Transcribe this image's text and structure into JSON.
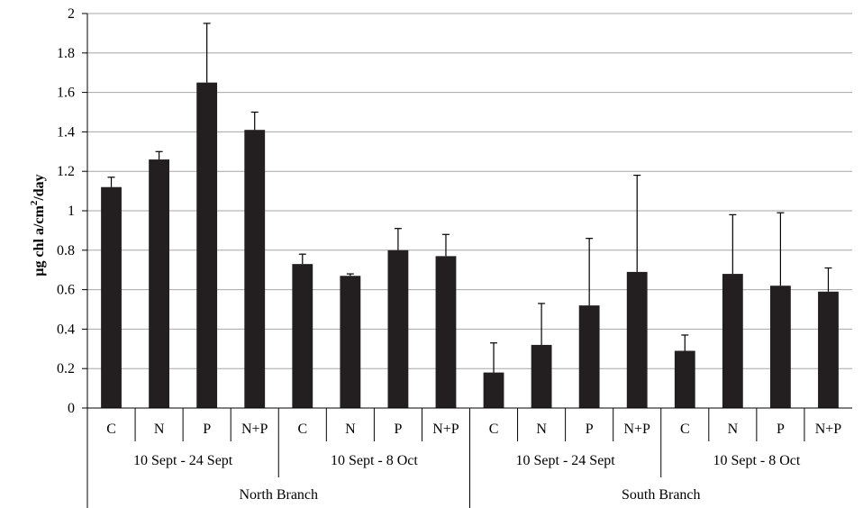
{
  "chart_data": {
    "type": "bar",
    "ylabel_parts": [
      "µg chl a/cm",
      "2",
      "/day"
    ],
    "ylim": [
      0,
      2
    ],
    "y_ticks": [
      "0",
      "0.2",
      "0.4",
      "0.6",
      "0.8",
      "1",
      "1.2",
      "1.4",
      "1.6",
      "1.8",
      "2"
    ],
    "grid": true,
    "categories": [
      "C",
      "N",
      "P",
      "N+P",
      "C",
      "N",
      "P",
      "N+P",
      "C",
      "N",
      "P",
      "N+P",
      "C",
      "N",
      "P",
      "N+P"
    ],
    "values": [
      1.12,
      1.26,
      1.65,
      1.41,
      0.73,
      0.67,
      0.8,
      0.77,
      0.18,
      0.32,
      0.52,
      0.69,
      0.29,
      0.68,
      0.62,
      0.59
    ],
    "error_plus": [
      0.05,
      0.04,
      0.3,
      0.09,
      0.05,
      0.01,
      0.11,
      0.11,
      0.15,
      0.21,
      0.34,
      0.49,
      0.08,
      0.3,
      0.37,
      0.12
    ],
    "periods": [
      "10 Sept - 24 Sept",
      "10 Sept - 8 Oct",
      "10 Sept - 24 Sept",
      "10 Sept - 8 Oct"
    ],
    "branches": [
      "North Branch",
      "South Branch"
    ],
    "colors": {
      "bar": "#231f20",
      "grid": "#a6a6a6",
      "axis": "#000000"
    }
  }
}
